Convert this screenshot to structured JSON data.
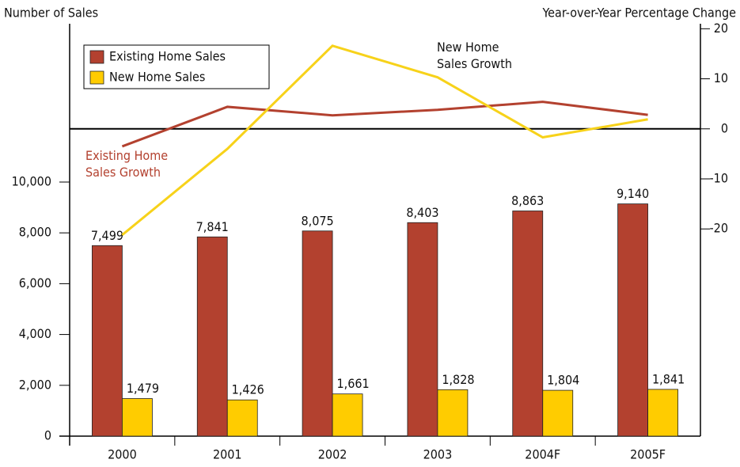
{
  "chart_data": {
    "type": "bar",
    "y_label": "Number of Sales",
    "y2_label": "Year-over-Year Percentage Change",
    "categories": [
      "2000",
      "2001",
      "2002",
      "2003",
      "2004F",
      "2005F"
    ],
    "series": [
      {
        "name": "Existing Home Sales",
        "type": "bar",
        "color": "#b3412f",
        "values": [
          7499,
          7841,
          8075,
          8403,
          8863,
          9140
        ],
        "value_labels": [
          "7,499",
          "7,841",
          "8,075",
          "8,403",
          "8,863",
          "9,140"
        ]
      },
      {
        "name": "New Home Sales",
        "type": "bar",
        "color": "#ffcc00",
        "values": [
          1479,
          1426,
          1661,
          1828,
          1804,
          1841
        ],
        "value_labels": [
          "1,479",
          "1,426",
          "1,661",
          "1,828",
          "1,804",
          "1,841"
        ]
      },
      {
        "name": "Existing Home Sales Growth",
        "type": "line",
        "axis": "y2",
        "color": "#b3412f",
        "values": [
          -3.5,
          4.4,
          2.7,
          3.8,
          5.4,
          2.8
        ]
      },
      {
        "name": "New Home Sales Growth",
        "type": "line",
        "axis": "y2",
        "color": "#f7d21a",
        "values": [
          -21.2,
          -4,
          16.6,
          10.3,
          -1.7,
          1.9
        ]
      }
    ],
    "ylim": [
      0,
      16230
    ],
    "yticks": [
      0,
      {
        "value": 2000,
        "label": "2,000"
      },
      {
        "value": 4000,
        "label": "4,000"
      },
      {
        "value": 6000,
        "label": "6,000"
      },
      {
        "value": 8000,
        "label": "8,000"
      },
      {
        "value": 10000,
        "label": "10,000"
      }
    ],
    "y2lim": [
      -61.4,
      21
    ],
    "y2ticks": [
      -20,
      -10,
      0,
      10,
      20
    ],
    "legend": "upper left"
  }
}
